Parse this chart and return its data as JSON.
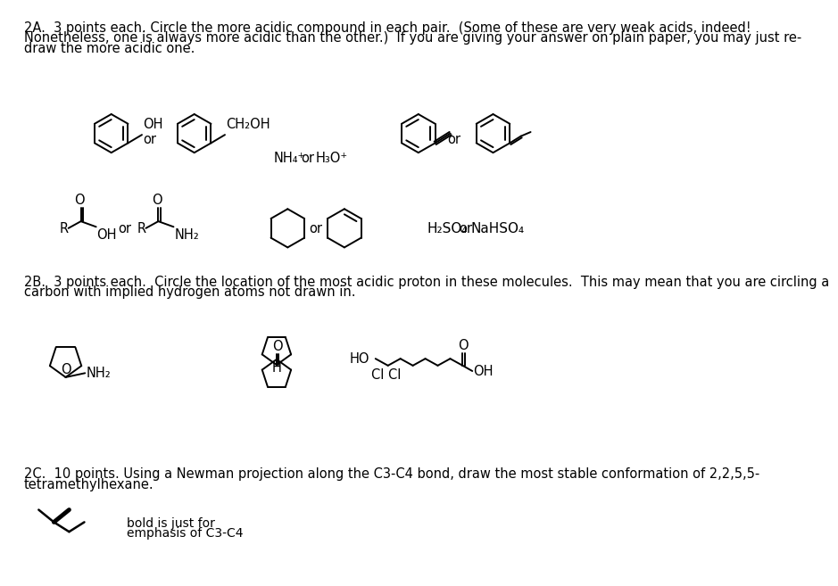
{
  "bg_color": "#ffffff",
  "text_color": "#000000",
  "title_text_1": "2A.  3 points each. Circle the more acidic compound in each pair.  (Some of these are very weak acids, indeed!",
  "title_text_2": "Nonetheless, one is always more acidic than the other.)  If you are giving your answer on plain paper, you may just re-",
  "title_text_3": "draw the more acidic one.",
  "section_2b_1": "2B.  3 points each.  Circle the location of the most acidic proton in these molecules.  This may mean that you are circling a",
  "section_2b_2": "carbon with implied hydrogen atoms not drawn in.",
  "section_2c_1": "2C.  10 points. Using a Newman projection along the C3-C4 bond, draw the most stable conformation of 2,2,5,5-",
  "section_2c_2": "tetramethylhexane.",
  "bold_note_1": "bold is just for",
  "bold_note_2": "emphasis of C3-C4",
  "fontsize_body": 10.5
}
